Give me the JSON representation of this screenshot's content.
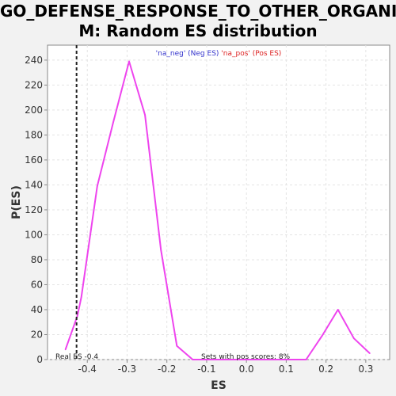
{
  "title_line1": "GO_DEFENSE_RESPONSE_TO_OTHER_ORGANIS",
  "title_line2": "M: Random ES distribution",
  "chart_data": {
    "type": "line",
    "xlabel": "ES",
    "ylabel": "P(ES)",
    "xlim": [
      -0.5,
      0.36
    ],
    "ylim": [
      0,
      252
    ],
    "xticks": [
      -0.4,
      -0.3,
      -0.2,
      -0.1,
      0.0,
      0.1,
      0.2,
      0.3
    ],
    "xtick_labels": [
      "-0.4",
      "-0.3",
      "-0.2",
      "-0.1",
      "0.0",
      "0.1",
      "0.2",
      "0.3"
    ],
    "yticks": [
      0,
      20,
      40,
      60,
      80,
      100,
      120,
      140,
      160,
      180,
      200,
      220,
      240
    ],
    "grid": true,
    "legend": [
      {
        "label": "'na_neg' (Neg ES)",
        "color": "#3333cc"
      },
      {
        "label": "'na_pos' (Pos ES)",
        "color": "#dd2222"
      }
    ],
    "series": [
      {
        "color": "#ee44ee",
        "x": [
          -0.455,
          -0.425,
          -0.415,
          -0.375,
          -0.335,
          -0.295,
          -0.255,
          -0.215,
          -0.175,
          -0.135,
          -0.095,
          0.15,
          0.19,
          0.23,
          0.27,
          0.31
        ],
        "y": [
          8,
          35,
          50,
          139,
          190,
          239,
          196,
          88,
          11,
          0,
          0,
          0,
          19,
          40,
          17,
          5
        ]
      }
    ],
    "real_es": {
      "x": -0.427,
      "label": "Real ES -0.4"
    },
    "annotation": "Sets with pos scores: 8%"
  }
}
